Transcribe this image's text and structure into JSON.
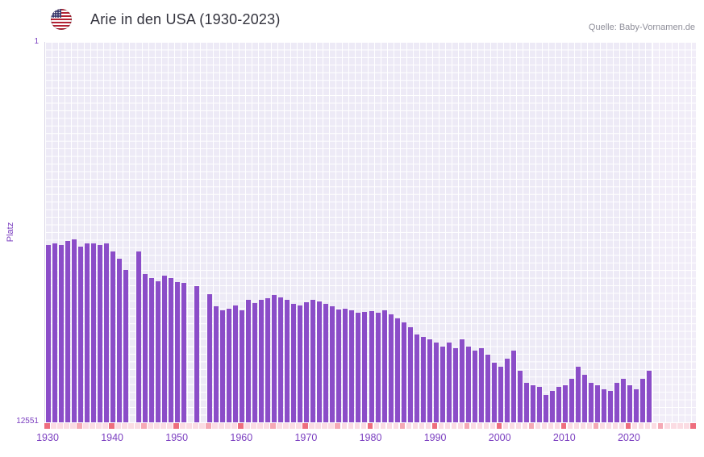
{
  "header": {
    "title": "Arie in den USA (1930-2023)",
    "source": "Quelle: Baby-Vornamen.de",
    "flag_icon": "usa-flag"
  },
  "axes": {
    "y_label": "Platz",
    "y_top_tick": "1",
    "y_bottom_tick": "12551",
    "x_tick_labels": [
      "1930",
      "1940",
      "1950",
      "1960",
      "1970",
      "1980",
      "1990",
      "2000",
      "2010",
      "2020"
    ]
  },
  "colors": {
    "bar": "#8b4dc8",
    "axis_text": "#7b3fc0",
    "plot_bg": "#edeaf6",
    "future_band_bg": "#f1edf8",
    "tick_decade": "#ee6e7e",
    "tick_half_decade": "#f5a9b5",
    "tick_year": "#fbdce3"
  },
  "chart_data": {
    "type": "bar",
    "title": "Arie in den USA (1930-2023)",
    "xlabel": "",
    "ylabel": "Platz",
    "legend": null,
    "grid": true,
    "y_axis": {
      "min": 1,
      "max": 12551,
      "inverted": true,
      "note": "rank 1 at top, bars rise from bottom; taller bar = better rank"
    },
    "x_range_displayed": [
      1930,
      2030
    ],
    "years": [
      1930,
      1931,
      1932,
      1933,
      1934,
      1935,
      1936,
      1937,
      1938,
      1939,
      1940,
      1941,
      1942,
      1943,
      1944,
      1945,
      1946,
      1947,
      1948,
      1949,
      1950,
      1951,
      1952,
      1953,
      1954,
      1955,
      1956,
      1957,
      1958,
      1959,
      1960,
      1961,
      1962,
      1963,
      1964,
      1965,
      1966,
      1967,
      1968,
      1969,
      1970,
      1971,
      1972,
      1973,
      1974,
      1975,
      1976,
      1977,
      1978,
      1979,
      1980,
      1981,
      1982,
      1983,
      1984,
      1985,
      1986,
      1987,
      1988,
      1989,
      1990,
      1991,
      1992,
      1993,
      1994,
      1995,
      1996,
      1997,
      1998,
      1999,
      2000,
      2001,
      2002,
      2003,
      2004,
      2005,
      2006,
      2007,
      2008,
      2009,
      2010,
      2011,
      2012,
      2013,
      2014,
      2015,
      2016,
      2017,
      2018,
      2019,
      2020,
      2021,
      2022,
      2023
    ],
    "values": [
      6700,
      6650,
      6700,
      6580,
      6520,
      6760,
      6660,
      6640,
      6700,
      6660,
      6900,
      7150,
      7520,
      null,
      6900,
      7660,
      7780,
      7900,
      7700,
      7800,
      7920,
      7960,
      null,
      8060,
      null,
      8320,
      8720,
      8860,
      8800,
      8700,
      8860,
      8500,
      8620,
      8520,
      8460,
      8350,
      8420,
      8500,
      8640,
      8700,
      8600,
      8500,
      8560,
      8640,
      8720,
      8840,
      8800,
      8860,
      8930,
      8900,
      8880,
      8930,
      8860,
      9000,
      9120,
      9260,
      9400,
      9650,
      9730,
      9800,
      9920,
      10050,
      9920,
      10100,
      9800,
      10050,
      10180,
      10100,
      10320,
      10580,
      10720,
      10450,
      10180,
      10850,
      11250,
      11330,
      11390,
      11650,
      11510,
      11390,
      11330,
      11110,
      10720,
      10980,
      11250,
      11330,
      11460,
      11510,
      11250,
      11110,
      11330,
      11460,
      11110,
      10850
    ]
  }
}
